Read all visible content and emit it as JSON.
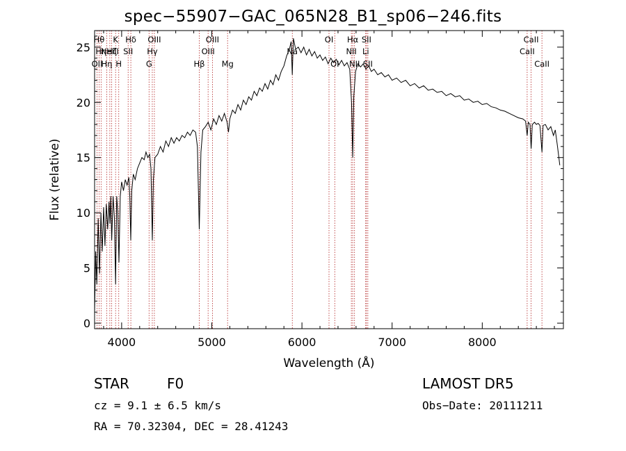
{
  "title": "spec−55907−GAC_065N28_B1_sp06−246.fits",
  "info": {
    "class": "STAR",
    "subclass": "F0",
    "survey": "LAMOST DR5",
    "cz": "cz = 9.1 ± 6.5 km/s",
    "obs_date": "Obs−Date: 20111211",
    "coords": "RA = 70.32304, DEC = 28.41243"
  },
  "chart_data": {
    "type": "line",
    "title": "spec−55907−GAC_065N28_B1_sp06−246.fits",
    "xlabel": "Wavelength (Å)",
    "ylabel": "Flux (relative)",
    "xlim": [
      3700,
      8900
    ],
    "ylim": [
      -0.5,
      26.5
    ],
    "xticks": [
      4000,
      5000,
      6000,
      7000,
      8000
    ],
    "yticks": [
      0,
      5,
      10,
      15,
      20,
      25
    ],
    "grid": false,
    "series": [
      {
        "values": [
          [
            3700,
            1.0
          ],
          [
            3712,
            6.5
          ],
          [
            3725,
            3.5
          ],
          [
            3740,
            9.5
          ],
          [
            3755,
            4.5
          ],
          [
            3770,
            10.0
          ],
          [
            3785,
            6.5
          ],
          [
            3800,
            10.5
          ],
          [
            3815,
            7.0
          ],
          [
            3830,
            10.8
          ],
          [
            3845,
            8.5
          ],
          [
            3860,
            11.0
          ],
          [
            3870,
            9.0
          ],
          [
            3880,
            11.5
          ],
          [
            3890,
            7.5
          ],
          [
            3905,
            11.5
          ],
          [
            3920,
            9.5
          ],
          [
            3933,
            3.5
          ],
          [
            3945,
            11.5
          ],
          [
            3958,
            10.0
          ],
          [
            3970,
            5.5
          ],
          [
            3985,
            11.5
          ],
          [
            4000,
            12.8
          ],
          [
            4020,
            12.0
          ],
          [
            4040,
            13.0
          ],
          [
            4060,
            12.5
          ],
          [
            4080,
            13.2
          ],
          [
            4090,
            11.5
          ],
          [
            4101,
            7.5
          ],
          [
            4112,
            12.0
          ],
          [
            4130,
            13.5
          ],
          [
            4150,
            13.0
          ],
          [
            4175,
            14.0
          ],
          [
            4200,
            14.5
          ],
          [
            4225,
            15.0
          ],
          [
            4250,
            14.8
          ],
          [
            4270,
            15.5
          ],
          [
            4290,
            15.0
          ],
          [
            4310,
            15.3
          ],
          [
            4325,
            14.0
          ],
          [
            4340,
            7.5
          ],
          [
            4352,
            13.0
          ],
          [
            4370,
            15.0
          ],
          [
            4400,
            15.3
          ],
          [
            4430,
            16.0
          ],
          [
            4460,
            15.5
          ],
          [
            4490,
            16.5
          ],
          [
            4520,
            16.0
          ],
          [
            4550,
            16.8
          ],
          [
            4580,
            16.3
          ],
          [
            4610,
            16.8
          ],
          [
            4640,
            16.5
          ],
          [
            4670,
            17.0
          ],
          [
            4700,
            16.8
          ],
          [
            4730,
            17.3
          ],
          [
            4760,
            17.0
          ],
          [
            4790,
            17.5
          ],
          [
            4820,
            17.3
          ],
          [
            4840,
            16.0
          ],
          [
            4861,
            8.5
          ],
          [
            4880,
            15.5
          ],
          [
            4900,
            17.5
          ],
          [
            4930,
            17.8
          ],
          [
            4960,
            18.2
          ],
          [
            4990,
            17.5
          ],
          [
            5020,
            18.5
          ],
          [
            5050,
            18.0
          ],
          [
            5080,
            18.8
          ],
          [
            5110,
            18.3
          ],
          [
            5140,
            19.0
          ],
          [
            5170,
            18.2
          ],
          [
            5185,
            17.3
          ],
          [
            5200,
            18.5
          ],
          [
            5230,
            19.3
          ],
          [
            5260,
            19.0
          ],
          [
            5290,
            19.8
          ],
          [
            5320,
            19.3
          ],
          [
            5350,
            20.2
          ],
          [
            5380,
            19.8
          ],
          [
            5410,
            20.5
          ],
          [
            5440,
            20.2
          ],
          [
            5470,
            21.0
          ],
          [
            5500,
            20.6
          ],
          [
            5530,
            21.3
          ],
          [
            5560,
            21.0
          ],
          [
            5590,
            21.7
          ],
          [
            5620,
            21.2
          ],
          [
            5650,
            22.0
          ],
          [
            5680,
            21.6
          ],
          [
            5710,
            22.5
          ],
          [
            5740,
            22.0
          ],
          [
            5770,
            22.8
          ],
          [
            5800,
            23.3
          ],
          [
            5830,
            24.2
          ],
          [
            5860,
            24.8
          ],
          [
            5880,
            25.5
          ],
          [
            5893,
            22.5
          ],
          [
            5905,
            25.8
          ],
          [
            5930,
            24.8
          ],
          [
            5960,
            25.0
          ],
          [
            5990,
            24.5
          ],
          [
            6020,
            25.0
          ],
          [
            6050,
            24.3
          ],
          [
            6080,
            24.8
          ],
          [
            6110,
            24.2
          ],
          [
            6140,
            24.6
          ],
          [
            6170,
            24.0
          ],
          [
            6200,
            24.3
          ],
          [
            6230,
            23.8
          ],
          [
            6260,
            24.1
          ],
          [
            6290,
            23.5
          ],
          [
            6320,
            24.0
          ],
          [
            6350,
            23.6
          ],
          [
            6380,
            23.9
          ],
          [
            6410,
            23.4
          ],
          [
            6440,
            23.8
          ],
          [
            6470,
            23.3
          ],
          [
            6500,
            23.6
          ],
          [
            6530,
            23.0
          ],
          [
            6550,
            20.0
          ],
          [
            6563,
            15.0
          ],
          [
            6575,
            20.5
          ],
          [
            6595,
            22.8
          ],
          [
            6620,
            23.5
          ],
          [
            6650,
            23.2
          ],
          [
            6680,
            23.5
          ],
          [
            6710,
            23.0
          ],
          [
            6740,
            23.3
          ],
          [
            6770,
            22.8
          ],
          [
            6800,
            23.0
          ],
          [
            6840,
            22.5
          ],
          [
            6880,
            22.7
          ],
          [
            6920,
            22.3
          ],
          [
            6960,
            22.5
          ],
          [
            7000,
            22.0
          ],
          [
            7050,
            22.2
          ],
          [
            7100,
            21.8
          ],
          [
            7150,
            22.0
          ],
          [
            7200,
            21.5
          ],
          [
            7250,
            21.7
          ],
          [
            7300,
            21.3
          ],
          [
            7350,
            21.5
          ],
          [
            7400,
            21.1
          ],
          [
            7450,
            21.2
          ],
          [
            7500,
            20.9
          ],
          [
            7550,
            21.0
          ],
          [
            7600,
            20.6
          ],
          [
            7650,
            20.8
          ],
          [
            7700,
            20.5
          ],
          [
            7750,
            20.6
          ],
          [
            7800,
            20.2
          ],
          [
            7850,
            20.3
          ],
          [
            7900,
            20.0
          ],
          [
            7950,
            20.1
          ],
          [
            8000,
            19.8
          ],
          [
            8050,
            19.9
          ],
          [
            8100,
            19.6
          ],
          [
            8150,
            19.5
          ],
          [
            8200,
            19.3
          ],
          [
            8250,
            19.2
          ],
          [
            8300,
            19.0
          ],
          [
            8350,
            18.8
          ],
          [
            8400,
            18.6
          ],
          [
            8450,
            18.5
          ],
          [
            8480,
            18.3
          ],
          [
            8498,
            17.0
          ],
          [
            8510,
            18.2
          ],
          [
            8530,
            18.0
          ],
          [
            8542,
            15.8
          ],
          [
            8555,
            18.0
          ],
          [
            8580,
            18.2
          ],
          [
            8600,
            18.0
          ],
          [
            8620,
            18.1
          ],
          [
            8640,
            17.9
          ],
          [
            8662,
            15.5
          ],
          [
            8675,
            17.9
          ],
          [
            8700,
            18.0
          ],
          [
            8730,
            17.5
          ],
          [
            8760,
            17.8
          ],
          [
            8790,
            17.0
          ],
          [
            8810,
            17.5
          ],
          [
            8830,
            16.3
          ],
          [
            8850,
            15.0
          ],
          [
            8860,
            14.3
          ]
        ]
      }
    ],
    "lines": [
      {
        "w": 3727,
        "label": "OII",
        "row": 2
      },
      {
        "w": 3750,
        "label": "Hθ",
        "row": 0
      },
      {
        "w": 3772,
        "label": "Hη",
        "row": 1
      },
      {
        "w": 3835,
        "label": "Hη",
        "row": 2
      },
      {
        "w": 3869,
        "label": "NeIII",
        "row": 1
      },
      {
        "w": 3890,
        "label": "Hζ",
        "row": 1
      },
      {
        "w": 3933,
        "label": "K",
        "row": 0
      },
      {
        "w": 3968,
        "label": "H",
        "row": 2
      },
      {
        "w": 4102,
        "label": "Hδ",
        "row": 0
      },
      {
        "w": 4072,
        "label": "SII",
        "row": 1
      },
      {
        "w": 4304,
        "label": "G",
        "row": 2
      },
      {
        "w": 4340,
        "label": "Hγ",
        "row": 1
      },
      {
        "w": 4363,
        "label": "OIII",
        "row": 0
      },
      {
        "w": 4861,
        "label": "Hβ",
        "row": 2
      },
      {
        "w": 4959,
        "label": "OIII",
        "row": 1
      },
      {
        "w": 5007,
        "label": "OIII",
        "row": 0
      },
      {
        "w": 5175,
        "label": "Mg",
        "row": 2
      },
      {
        "w": 5893,
        "label": "Na",
        "row": 1
      },
      {
        "w": 6300,
        "label": "OI",
        "row": 0
      },
      {
        "w": 6364,
        "label": "OI",
        "row": 2
      },
      {
        "w": 6548,
        "label": "NII",
        "row": 1
      },
      {
        "w": 6563,
        "label": "Hα",
        "row": 0
      },
      {
        "w": 6583,
        "label": "NII",
        "row": 2
      },
      {
        "w": 6707,
        "label": "Li",
        "row": 1
      },
      {
        "w": 6716,
        "label": "SII",
        "row": 0
      },
      {
        "w": 6731,
        "label": "SII",
        "row": 2
      },
      {
        "w": 8498,
        "label": "CaII",
        "row": 1
      },
      {
        "w": 8542,
        "label": "CaII",
        "row": 0
      },
      {
        "w": 8662,
        "label": "CaII",
        "row": 2
      }
    ]
  }
}
